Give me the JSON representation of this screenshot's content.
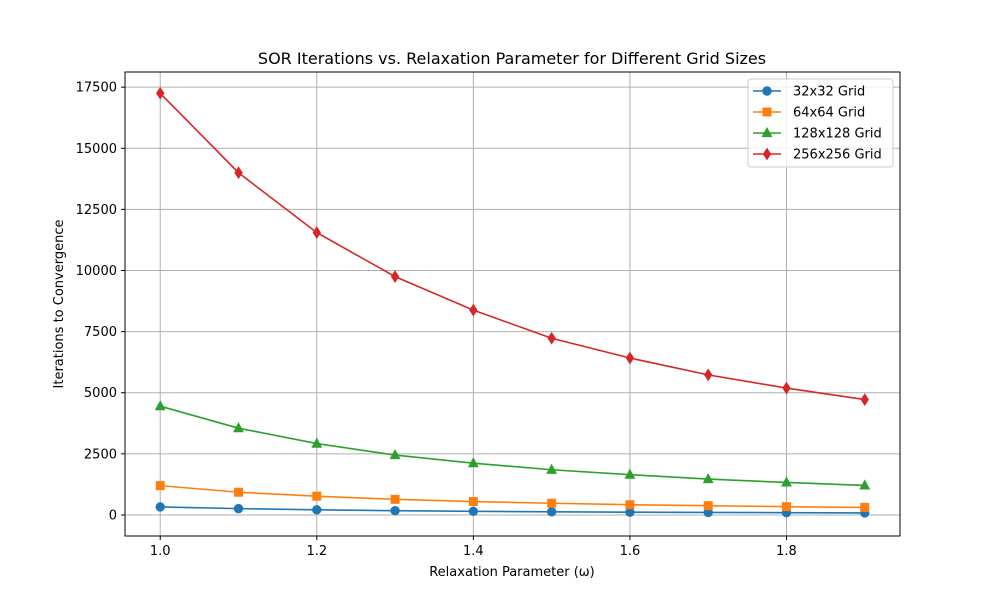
{
  "chart_data": {
    "type": "line",
    "title": "SOR Iterations vs. Relaxation Parameter for Different Grid Sizes",
    "xlabel": "Relaxation Parameter (ω)",
    "ylabel": "Iterations to Convergence",
    "x": [
      1.0,
      1.1,
      1.2,
      1.3,
      1.4,
      1.5,
      1.6,
      1.7,
      1.8,
      1.9
    ],
    "xlim": [
      0.955,
      1.945
    ],
    "ylim": [
      -860,
      18120
    ],
    "xticks": [
      1.0,
      1.2,
      1.4,
      1.6,
      1.8
    ],
    "xtick_labels": [
      "1.0",
      "1.2",
      "1.4",
      "1.6",
      "1.8"
    ],
    "yticks": [
      0,
      2500,
      5000,
      7500,
      10000,
      12500,
      15000,
      17500
    ],
    "ytick_labels": [
      "0",
      "2500",
      "5000",
      "7500",
      "10000",
      "12500",
      "15000",
      "17500"
    ],
    "grid": true,
    "legend_position": "top-right",
    "series": [
      {
        "name": "32x32 Grid",
        "color": "#1f77b4",
        "marker": "circle",
        "values": [
          330,
          260,
          210,
          175,
          150,
          130,
          115,
          105,
          95,
          85
        ]
      },
      {
        "name": "64x64 Grid",
        "color": "#ff7f0e",
        "marker": "square",
        "values": [
          1200,
          930,
          770,
          640,
          550,
          480,
          420,
          380,
          340,
          310
        ]
      },
      {
        "name": "128x128 Grid",
        "color": "#2ca02c",
        "marker": "triangle",
        "values": [
          4450,
          3550,
          2920,
          2450,
          2120,
          1850,
          1650,
          1470,
          1330,
          1210
        ]
      },
      {
        "name": "256x256 Grid",
        "color": "#d62728",
        "marker": "diamond",
        "values": [
          17250,
          14000,
          11550,
          9750,
          8380,
          7230,
          6420,
          5730,
          5190,
          4720
        ]
      }
    ]
  }
}
